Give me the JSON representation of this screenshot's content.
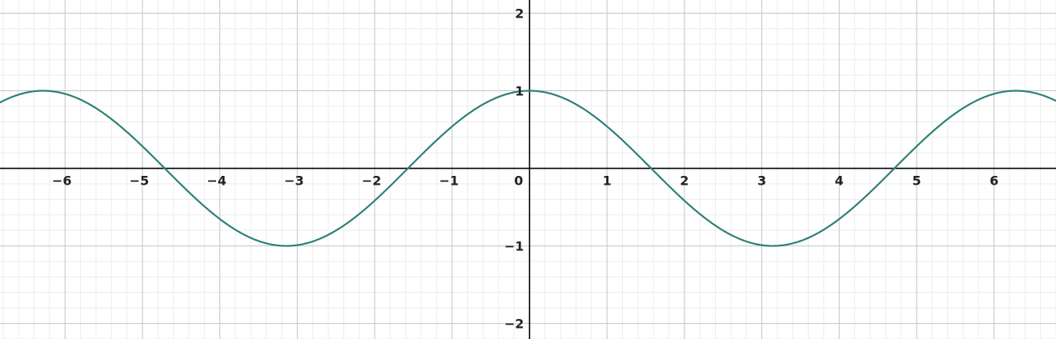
{
  "chart_data": {
    "type": "line",
    "title": "",
    "xlabel": "",
    "ylabel": "",
    "xlim": [
      -6.84,
      6.8
    ],
    "ylim": [
      -2.2,
      2.17
    ],
    "x_ticks": [
      -6,
      -5,
      -4,
      -3,
      -2,
      -1,
      0,
      1,
      2,
      3,
      4,
      5,
      6
    ],
    "y_ticks": [
      -2,
      -1,
      1,
      2
    ],
    "x_tick_labels": [
      "−6",
      "−5",
      "−4",
      "−3",
      "−2",
      "−1",
      "0",
      "1",
      "2",
      "3",
      "4",
      "5",
      "6"
    ],
    "y_tick_labels": [
      "−2",
      "−1",
      "1",
      "2"
    ],
    "major_grid_step": 1,
    "minor_grid_step": 0.2,
    "grid": true,
    "axes_color": "#000000",
    "major_grid_color": "#c4c4c4",
    "minor_grid_color": "#ececec",
    "series": [
      {
        "function": "cos(x)",
        "color": "#2e8077",
        "x_samples": [
          -6.84,
          -6.2832,
          -5.4978,
          -4.7124,
          -3.927,
          -3.1416,
          -2.3562,
          -1.5708,
          -0.7854,
          0,
          0.7854,
          1.5708,
          2.3562,
          3.1416,
          3.927,
          4.7124,
          5.4978,
          6.2832,
          6.8
        ],
        "y_samples": [
          0.85,
          1,
          0.71,
          0,
          -0.71,
          -1,
          -0.71,
          0,
          0.71,
          1,
          0.71,
          0,
          -0.71,
          -1,
          -0.71,
          0,
          0.71,
          1,
          0.87
        ]
      }
    ]
  }
}
